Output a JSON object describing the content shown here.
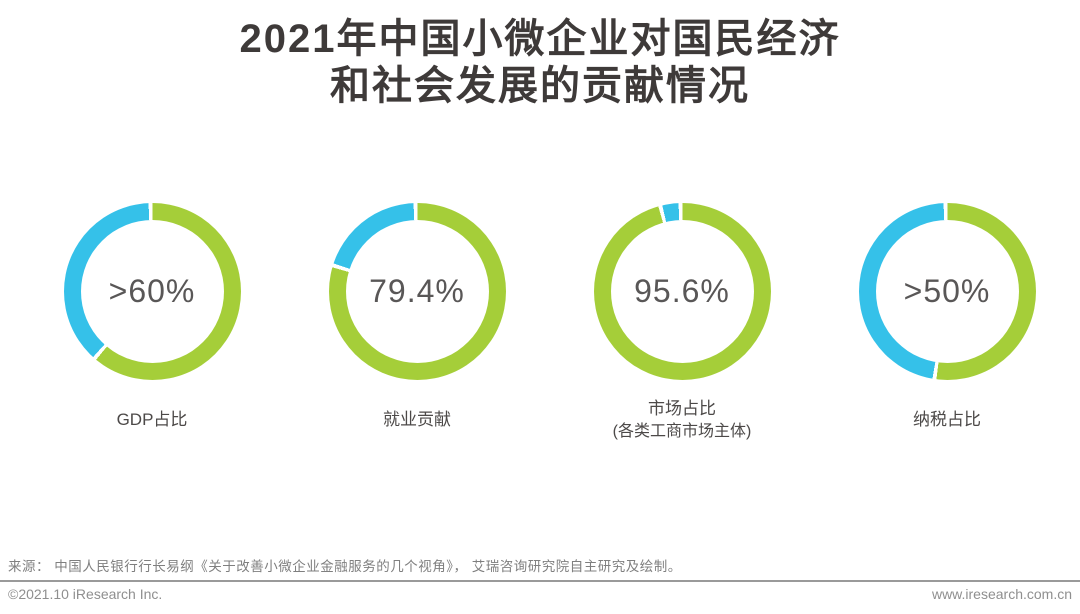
{
  "page": {
    "title_line1": "2021年中国小微企业对国民经济",
    "title_line2": "和社会发展的贡献情况",
    "source": "来源： 中国人民银行行长易纲《关于改善小微企业金融服务的几个视角》， 艾瑞咨询研究院自主研究及绘制。",
    "footer_left": "©2021.10 iResearch Inc.",
    "footer_right": "www.iresearch.com.cn"
  },
  "chart_data": {
    "type": "pie",
    "subtype": "donut-ring-row",
    "title": "2021年中国小微企业对国民经济和社会发展的贡献情况",
    "legend": "none",
    "colors": {
      "primary_green": "#a5ce39",
      "secondary_blue": "#35c1e9",
      "gap_white": "#ffffff",
      "value_text": "#595757",
      "label_text": "#4c4948",
      "title_text": "#3e3a39"
    },
    "items": [
      {
        "value_label": ">60%",
        "value_numeric": 60,
        "qualifier": ">",
        "ring_green_pct": 61,
        "label": "GDP占比",
        "sublabel": ""
      },
      {
        "value_label": "79.4%",
        "value_numeric": 79.4,
        "qualifier": "",
        "ring_green_pct": 79.4,
        "label": "就业贡献",
        "sublabel": ""
      },
      {
        "value_label": "95.6%",
        "value_numeric": 95.6,
        "qualifier": "",
        "ring_green_pct": 95.6,
        "label": "市场占比",
        "sublabel": "(各类工商市场主体)"
      },
      {
        "value_label": ">50%",
        "value_numeric": 50,
        "qualifier": ">",
        "ring_green_pct": 52,
        "label": "纳税占比",
        "sublabel": ""
      }
    ]
  }
}
